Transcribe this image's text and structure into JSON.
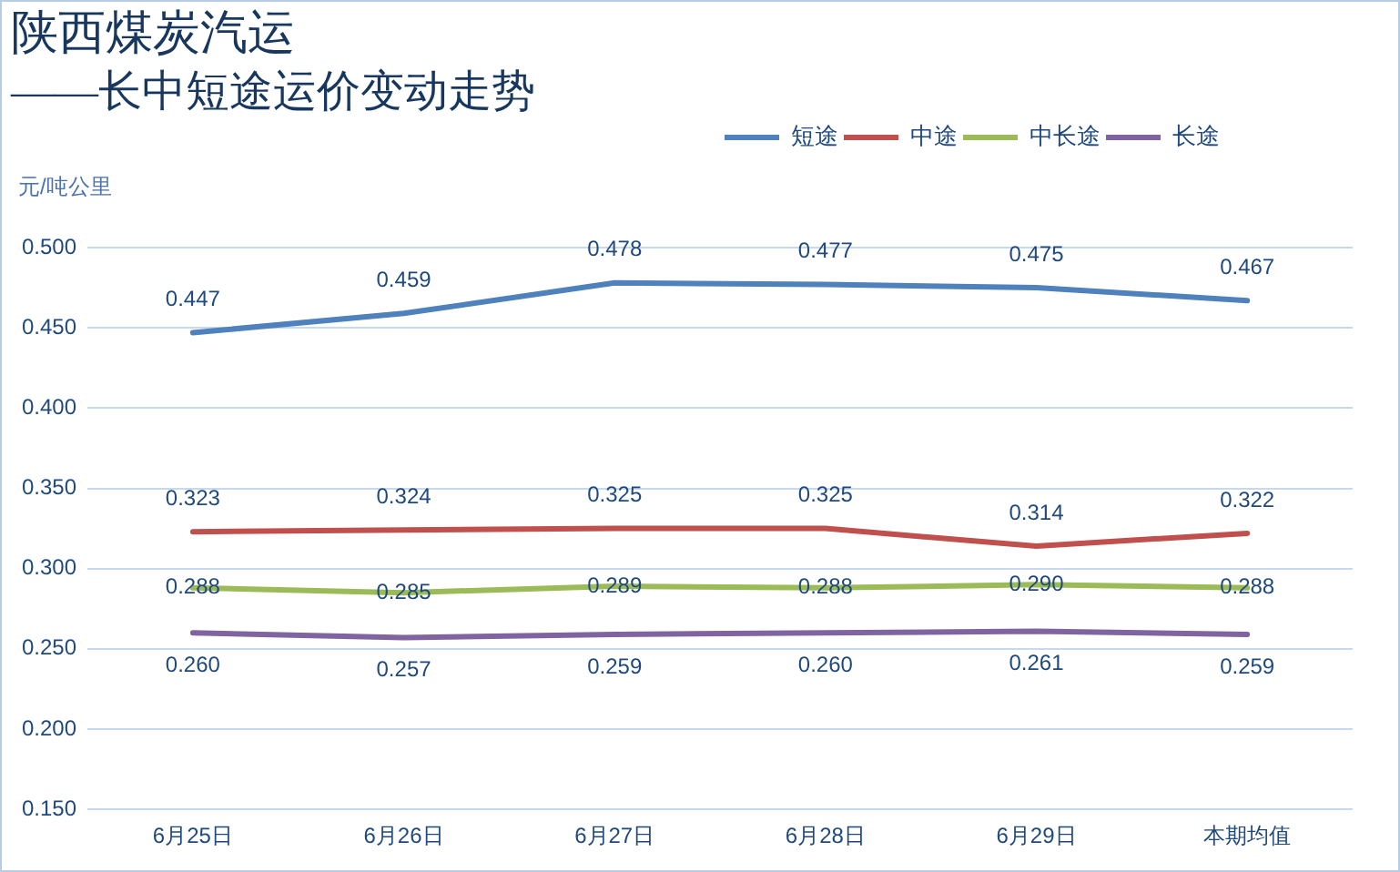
{
  "chart_data": {
    "type": "line",
    "title": "陕西煤炭汽运",
    "subtitle": "——长中短途运价变动走势",
    "ylabel": "元/吨公里",
    "categories": [
      "6月25日",
      "6月26日",
      "6月27日",
      "6月28日",
      "6月29日",
      "本期均值"
    ],
    "series": [
      {
        "name": "短途",
        "color": "#4f81bd",
        "values": [
          0.447,
          0.459,
          0.478,
          0.477,
          0.475,
          0.467
        ],
        "value_labels": [
          "0.447",
          "0.459",
          "0.478",
          "0.477",
          "0.475",
          "0.467"
        ]
      },
      {
        "name": "中途",
        "color": "#c0504d",
        "values": [
          0.323,
          0.324,
          0.325,
          0.325,
          0.314,
          0.322
        ],
        "value_labels": [
          "0.323",
          "0.324",
          "0.325",
          "0.325",
          "0.314",
          "0.322"
        ]
      },
      {
        "name": "中长途",
        "color": "#9bbb59",
        "values": [
          0.288,
          0.285,
          0.289,
          0.288,
          0.29,
          0.288
        ],
        "value_labels": [
          "0.288",
          "0.285",
          "0.289",
          "0.288",
          "0.290",
          "0.288"
        ]
      },
      {
        "name": "长途",
        "color": "#8064a2",
        "values": [
          0.26,
          0.257,
          0.259,
          0.26,
          0.261,
          0.259
        ],
        "value_labels": [
          "0.260",
          "0.257",
          "0.259",
          "0.260",
          "0.261",
          "0.259"
        ]
      }
    ],
    "ylim": [
      0.15,
      0.5
    ],
    "yticks": [
      {
        "value": 0.15,
        "label": "0.150"
      },
      {
        "value": 0.2,
        "label": "0.200"
      },
      {
        "value": 0.25,
        "label": "0.250"
      },
      {
        "value": 0.3,
        "label": "0.300"
      },
      {
        "value": 0.35,
        "label": "0.350"
      },
      {
        "value": 0.4,
        "label": "0.400"
      },
      {
        "value": 0.45,
        "label": "0.450"
      },
      {
        "value": 0.5,
        "label": "0.500"
      }
    ],
    "grid": "y",
    "legend": "top right",
    "marker": "none",
    "line_style": "solid"
  }
}
